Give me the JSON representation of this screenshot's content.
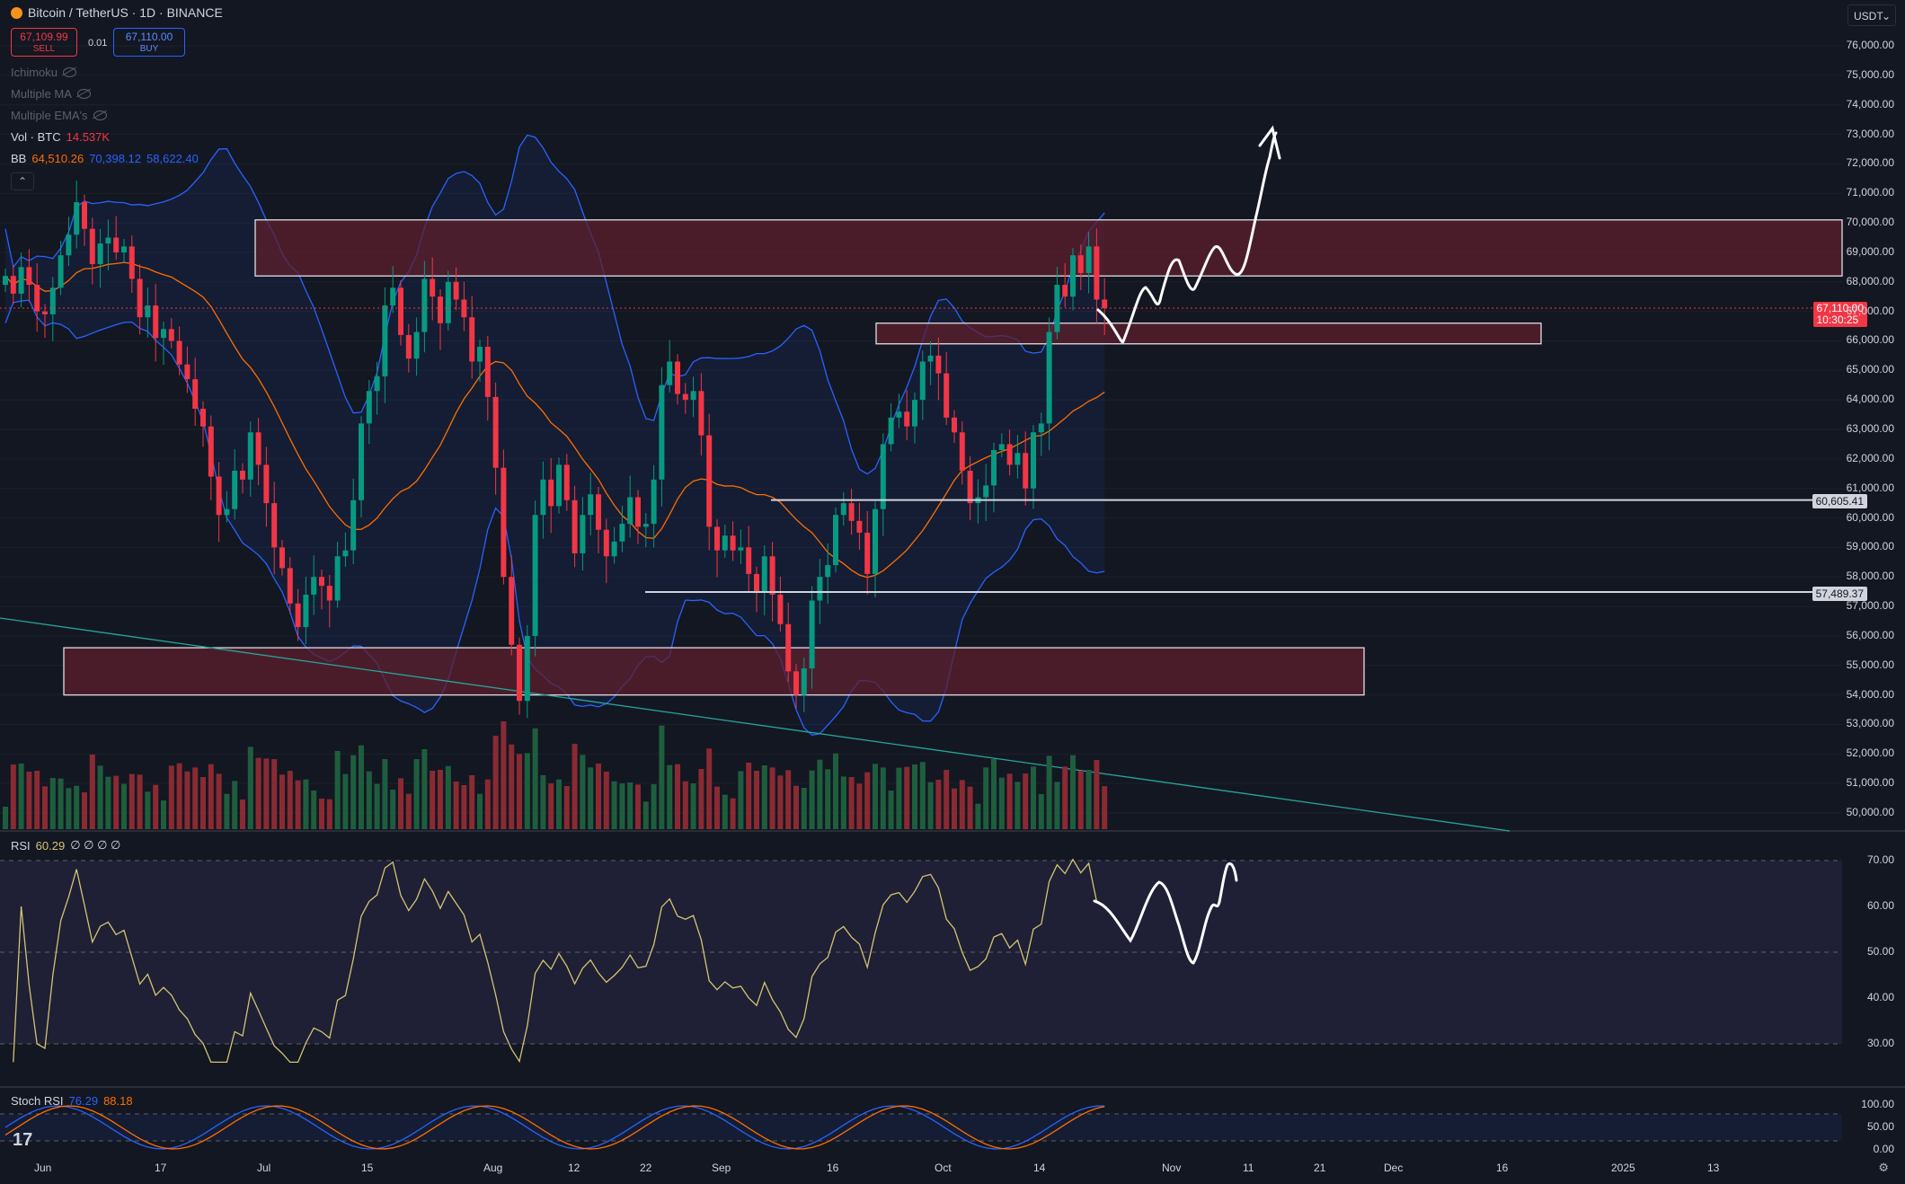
{
  "header": {
    "title": "Bitcoin / TetherUS · 1D · BINANCE",
    "sell_price": "67,109.99",
    "sell_label": "SELL",
    "spread": "0.01",
    "buy_price": "67,110.00",
    "buy_label": "BUY"
  },
  "indicators": {
    "ichimoku": "Ichimoku",
    "multiple_ma": "Multiple MA",
    "multiple_ema": "Multiple EMA's",
    "vol_label": "Vol · BTC",
    "vol_value": "14.537K",
    "bb_label": "BB",
    "bb_basis": "64,510.26",
    "bb_upper": "70,398.12",
    "bb_lower": "58,622.40",
    "rsi_label": "RSI",
    "rsi_value": "60.29",
    "rsi_extra": "∅ ∅ ∅ ∅",
    "stoch_label": "Stoch RSI",
    "stoch_k": "76.29",
    "stoch_d": "88.18"
  },
  "currency_button": "USDT",
  "price_tags": {
    "last_price": "67,110.00",
    "countdown": "10:30:25",
    "level1": "60,605.41",
    "level2": "57,489.37"
  },
  "colors": {
    "background": "#131722",
    "up": "#089981",
    "down": "#f23645",
    "bb": "#2962ff",
    "bb_basis": "#ff6d00",
    "zone": "#5d1f2e",
    "rsi": "#d1c572",
    "trendline": "#26a69a"
  },
  "chart_data": {
    "type": "candlestick",
    "y_axis_labels": [
      "76,000.00",
      "75,000.00",
      "74,000.00",
      "73,000.00",
      "72,000.00",
      "71,000.00",
      "70,000.00",
      "69,000.00",
      "68,000.00",
      "67,000.00",
      "66,000.00",
      "65,000.00",
      "64,000.00",
      "63,000.00",
      "62,000.00",
      "61,000.00",
      "60,000.00",
      "59,000.00",
      "58,000.00",
      "57,000.00",
      "56,000.00",
      "55,000.00",
      "54,000.00",
      "53,000.00",
      "52,000.00",
      "51,000.00",
      "50,000.00"
    ],
    "x_axis_labels": [
      "Jun",
      "17",
      "Jul",
      "15",
      "Aug",
      "12",
      "22",
      "Sep",
      "16",
      "Oct",
      "14",
      "Nov",
      "11",
      "21",
      "Dec",
      "16",
      "2025",
      "13"
    ],
    "rsi_axis_labels": [
      "70.00",
      "60.00",
      "50.00",
      "40.00",
      "30.00"
    ],
    "stoch_axis_labels": [
      "100.00",
      "50.00",
      "0.00"
    ],
    "closes": [
      68200,
      67600,
      68500,
      67900,
      67000,
      66900,
      67800,
      68900,
      69600,
      70700,
      69800,
      68600,
      69300,
      69500,
      69000,
      69200,
      68100,
      66800,
      67200,
      66100,
      66400,
      66000,
      65200,
      64700,
      63700,
      63100,
      61400,
      60100,
      60300,
      61600,
      61300,
      62900,
      61800,
      60500,
      59000,
      58300,
      57100,
      56300,
      57400,
      58000,
      57700,
      57200,
      58700,
      58900,
      60600,
      63200,
      64300,
      64800,
      67200,
      67800,
      66200,
      65400,
      66300,
      68100,
      67500,
      66600,
      68000,
      67400,
      66800,
      65300,
      65800,
      64100,
      61700,
      58000,
      55700,
      53800,
      56000,
      60100,
      61300,
      60400,
      61800,
      60600,
      58800,
      60100,
      60800,
      59600,
      58700,
      59200,
      59800,
      60700,
      59700,
      59800,
      61300,
      64500,
      65300,
      64200,
      64000,
      64300,
      62800,
      59700,
      58900,
      59400,
      58900,
      59000,
      58100,
      57500,
      58700,
      57400,
      56400,
      54800,
      54000,
      54900,
      57200,
      58000,
      58400,
      60100,
      60500,
      59900,
      59500,
      58100,
      60300,
      62500,
      63400,
      63600,
      63100,
      64000,
      65300,
      65500,
      64900,
      63400,
      62900,
      61600,
      60500,
      60700,
      61100,
      62300,
      62500,
      61800,
      62200,
      61000,
      62900,
      63200,
      66300,
      67900,
      67500,
      68900,
      68300,
      69200,
      67400,
      67110
    ],
    "annotations": {
      "resistance_zone": [
        68200,
        70100
      ],
      "small_zone": [
        65900,
        66600
      ],
      "support_zone": [
        54000,
        55600
      ],
      "level1": 60605.41,
      "level2": 57489.37
    }
  }
}
